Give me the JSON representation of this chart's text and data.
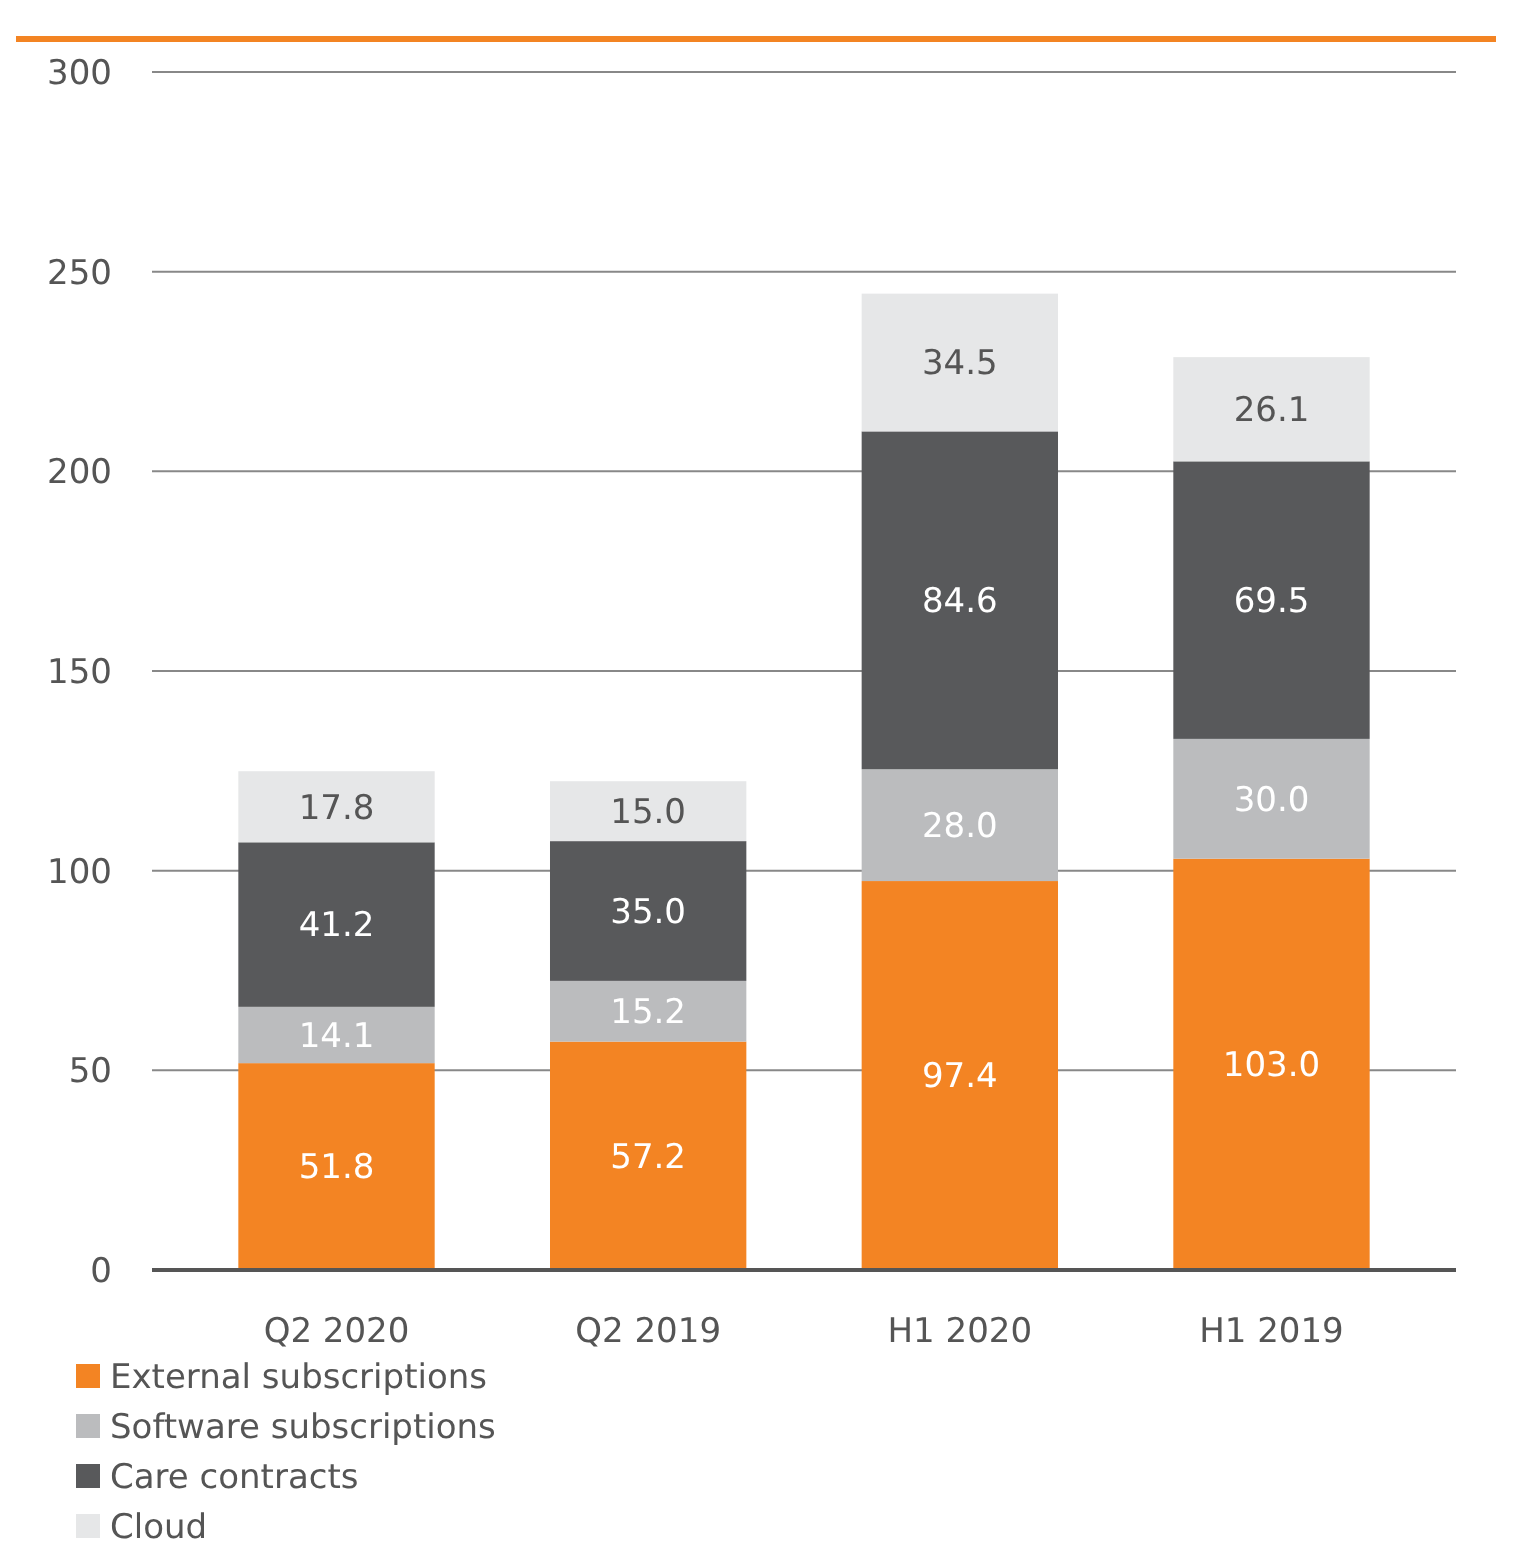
{
  "chart_data": {
    "type": "bar",
    "stacked": true,
    "categories": [
      "Q2 2020",
      "Q2 2019",
      "H1 2020",
      "H1 2019"
    ],
    "series": [
      {
        "name": "External subscriptions",
        "color": "#f38423",
        "values": [
          51.8,
          57.2,
          97.4,
          103.0
        ],
        "value_labels": [
          "51.8",
          "57.2",
          "97.4",
          "103.0"
        ]
      },
      {
        "name": "Software subscriptions",
        "color": "#bbbcbe",
        "values": [
          14.1,
          15.2,
          28.0,
          30.0
        ],
        "value_labels": [
          "14.1",
          "15.2",
          "28.0",
          "30.0"
        ]
      },
      {
        "name": "Care contracts",
        "color": "#58595b",
        "values": [
          41.2,
          35.0,
          84.6,
          69.5
        ],
        "value_labels": [
          "41.2",
          "35.0",
          "84.6",
          "69.5"
        ]
      },
      {
        "name": "Cloud",
        "color": "#e6e7e8",
        "values": [
          17.8,
          15.0,
          34.5,
          26.1
        ],
        "value_labels": [
          "17.8",
          "15.0",
          "34.5",
          "26.1"
        ]
      }
    ],
    "ylim": [
      0,
      300
    ],
    "yticks": [
      0,
      50,
      100,
      150,
      200,
      250,
      300
    ],
    "grid": "y",
    "legend": "bottom"
  }
}
